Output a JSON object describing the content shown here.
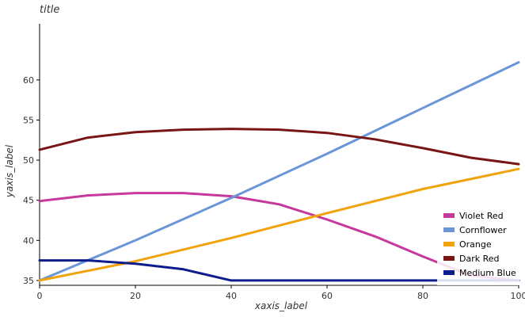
{
  "chart_data": {
    "type": "line",
    "title": "title",
    "xlabel": "xaxis_label",
    "ylabel": "yaxis_label",
    "xlim": [
      0,
      100
    ],
    "ylim": [
      34.4,
      67.0
    ],
    "xticks": [
      0,
      20,
      40,
      60,
      80,
      100
    ],
    "yticks": [
      35,
      40,
      45,
      50,
      55,
      60
    ],
    "grid": false,
    "legend_position": "top-right",
    "series": [
      {
        "name": "Violet Red",
        "color": "#c7389c",
        "x": [
          0,
          10,
          20,
          30,
          40,
          50,
          60,
          70,
          80,
          90,
          100
        ],
        "y": [
          44.9,
          45.6,
          45.9,
          45.9,
          45.5,
          44.5,
          42.6,
          40.5,
          38.0,
          35.6,
          35.0
        ]
      },
      {
        "name": "Cornflower",
        "color": "#6a95d8",
        "x": [
          0,
          20,
          40,
          60,
          80,
          100
        ],
        "y": [
          35.0,
          40.0,
          45.3,
          50.8,
          56.5,
          62.2
        ]
      },
      {
        "name": "Orange",
        "color": "#f0a30a",
        "x": [
          0,
          20,
          40,
          60,
          80,
          100
        ],
        "y": [
          35.0,
          37.4,
          40.3,
          43.4,
          46.4,
          48.9
        ]
      },
      {
        "name": "Dark Red",
        "color": "#7a1515",
        "x": [
          0,
          10,
          20,
          30,
          40,
          50,
          60,
          70,
          80,
          90,
          100
        ],
        "y": [
          51.3,
          52.8,
          53.5,
          53.8,
          53.9,
          53.8,
          53.4,
          52.6,
          51.5,
          50.3,
          49.5
        ]
      },
      {
        "name": "Medium Blue",
        "color": "#0d1e8c",
        "x": [
          0,
          10,
          20,
          30,
          40,
          50,
          60,
          70,
          80,
          90,
          100
        ],
        "y": [
          37.5,
          37.5,
          37.1,
          36.4,
          35.0,
          35.0,
          35.0,
          35.0,
          35.0,
          35.0,
          35.0
        ]
      }
    ]
  }
}
